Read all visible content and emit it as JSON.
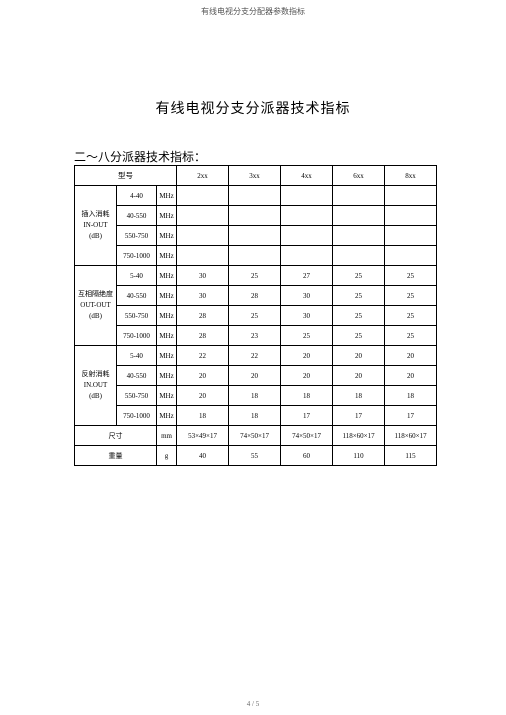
{
  "header": "有线电视分支分配器参数指标",
  "title": "有线电视分支分派器技术指标",
  "subtitle": "二～八分派器技术指标：",
  "table": {
    "model_label": "型号",
    "model_cols": [
      "2xx",
      "3xx",
      "4xx",
      "6xx",
      "8xx"
    ],
    "groups": [
      {
        "label_lines": [
          "插入消耗",
          "IN-OUT",
          "(dB)"
        ],
        "rows": [
          {
            "range": "4-40",
            "unit": "MHz",
            "vals": [
              "",
              "",
              "",
              "",
              ""
            ]
          },
          {
            "range": "40-550",
            "unit": "MHz",
            "vals": [
              "",
              "",
              "",
              "",
              ""
            ]
          },
          {
            "range": "550-750",
            "unit": "MHz",
            "vals": [
              "",
              "",
              "",
              "",
              ""
            ]
          },
          {
            "range": "750-1000",
            "unit": "MHz",
            "vals": [
              "",
              "",
              "",
              "",
              ""
            ]
          }
        ]
      },
      {
        "label_lines": [
          "互相隔绝度",
          "OUT-OUT",
          "(dB)"
        ],
        "rows": [
          {
            "range": "5-40",
            "unit": "MHz",
            "vals": [
              "30",
              "25",
              "27",
              "25",
              "25"
            ]
          },
          {
            "range": "40-550",
            "unit": "MHz",
            "vals": [
              "30",
              "28",
              "30",
              "25",
              "25"
            ]
          },
          {
            "range": "550-750",
            "unit": "MHz",
            "vals": [
              "28",
              "25",
              "30",
              "25",
              "25"
            ]
          },
          {
            "range": "750-1000",
            "unit": "MHz",
            "vals": [
              "28",
              "23",
              "25",
              "25",
              "25"
            ]
          }
        ]
      },
      {
        "label_lines": [
          "反射消耗",
          "IN.OUT",
          "(dB)"
        ],
        "rows": [
          {
            "range": "5-40",
            "unit": "MHz",
            "vals": [
              "22",
              "22",
              "20",
              "20",
              "20"
            ]
          },
          {
            "range": "40-550",
            "unit": "MHz",
            "vals": [
              "20",
              "20",
              "20",
              "20",
              "20"
            ]
          },
          {
            "range": "550-750",
            "unit": "MHz",
            "vals": [
              "20",
              "18",
              "18",
              "18",
              "18"
            ]
          },
          {
            "range": "750-1000",
            "unit": "MHz",
            "vals": [
              "18",
              "18",
              "17",
              "17",
              "17"
            ]
          }
        ]
      }
    ],
    "footer_rows": [
      {
        "label": "尺寸",
        "unit": "mm",
        "vals": [
          "53×49×17",
          "74×50×17",
          "74×50×17",
          "118×60×17",
          "118×60×17"
        ]
      },
      {
        "label": "重量",
        "unit": "g",
        "vals": [
          "40",
          "55",
          "60",
          "110",
          "115"
        ]
      }
    ]
  },
  "footer": "4 / 5"
}
